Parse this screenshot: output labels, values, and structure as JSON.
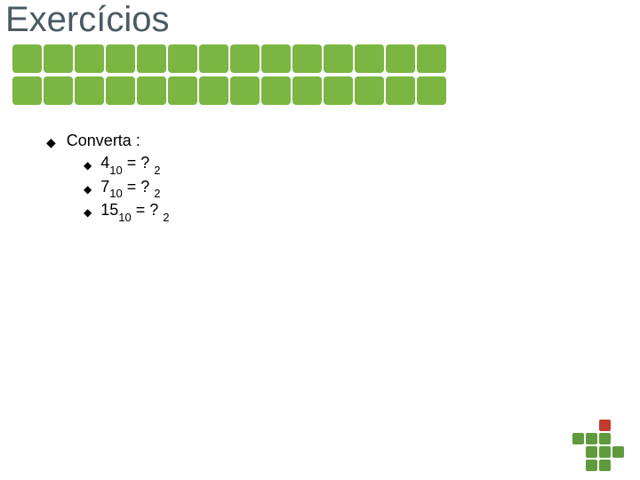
{
  "title": "Exercícios",
  "title_color": "#4a5a63",
  "green_block_color": "#7bb642",
  "green_block_count_per_row": 14,
  "text_color": "#000000",
  "bullet_glyph": "◆",
  "content": {
    "heading": "Converta :",
    "items": [
      {
        "base_num": "4",
        "base_sub": "10",
        "eq": " = ? ",
        "target_sub": "2"
      },
      {
        "base_num": "7",
        "base_sub": "10",
        "eq": " = ? ",
        "target_sub": "2"
      },
      {
        "base_num": "15",
        "base_sub": "10",
        "eq": " = ? ",
        "target_sub": "2"
      }
    ]
  },
  "logo": {
    "green": "#5f9b3c",
    "red": "#c23b2e",
    "rows": 4,
    "pattern": [
      [
        null,
        null,
        "red",
        null
      ],
      [
        "green",
        "green",
        "green",
        null
      ],
      [
        null,
        "green",
        "green",
        "green"
      ],
      [
        null,
        "green",
        "green",
        null
      ]
    ]
  }
}
